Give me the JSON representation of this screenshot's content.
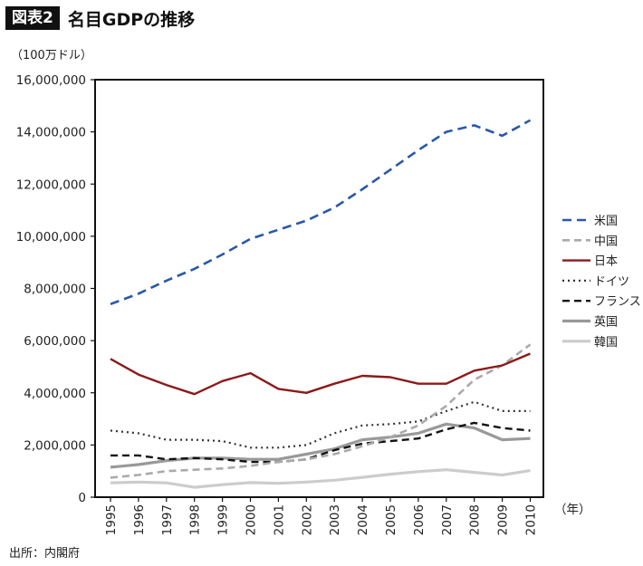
{
  "header": {
    "badge": "図表2",
    "title": "名目GDPの推移"
  },
  "unit_label": "（100万ドル）",
  "source": "出所：内閣府",
  "chart_data": {
    "type": "line",
    "title": "名目GDPの推移",
    "ylabel": "（100万ドル）",
    "xlabel": "（年）",
    "ylim": [
      0,
      16000000
    ],
    "yticks": [
      0,
      2000000,
      4000000,
      6000000,
      8000000,
      10000000,
      12000000,
      14000000,
      16000000
    ],
    "ytick_labels": [
      "0",
      "2,000,000",
      "4,000,000",
      "6,000,000",
      "8,000,000",
      "10,000,000",
      "12,000,000",
      "14,000,000",
      "16,000,000"
    ],
    "x": [
      "1995",
      "1996",
      "1997",
      "1998",
      "1999",
      "2000",
      "2001",
      "2002",
      "2003",
      "2004",
      "2005",
      "2006",
      "2007",
      "2008",
      "2009",
      "2010"
    ],
    "grid": false,
    "legend_position": "right",
    "series": [
      {
        "name": "米国",
        "color": "#2a58a8",
        "dash": "10,6",
        "width": 2.6,
        "values": [
          7400000,
          7800000,
          8300000,
          8750000,
          9300000,
          9900000,
          10250000,
          10600000,
          11100000,
          11800000,
          12550000,
          13300000,
          14000000,
          14250000,
          13850000,
          14450000
        ]
      },
      {
        "name": "中国",
        "color": "#aaaaaa",
        "dash": "8,5",
        "width": 2.6,
        "values": [
          750000,
          850000,
          1000000,
          1050000,
          1100000,
          1200000,
          1350000,
          1450000,
          1650000,
          1950000,
          2300000,
          2750000,
          3500000,
          4500000,
          5050000,
          5850000
        ]
      },
      {
        "name": "日本",
        "color": "#8b1a1a",
        "dash": "",
        "width": 2.4,
        "values": [
          5300000,
          4700000,
          4300000,
          3950000,
          4450000,
          4750000,
          4150000,
          4000000,
          4350000,
          4650000,
          4600000,
          4350000,
          4350000,
          4850000,
          5050000,
          5500000
        ]
      },
      {
        "name": "ドイツ",
        "color": "#333333",
        "dash": "2,4",
        "width": 2.2,
        "values": [
          2550000,
          2450000,
          2200000,
          2200000,
          2150000,
          1900000,
          1900000,
          2000000,
          2450000,
          2750000,
          2800000,
          2900000,
          3300000,
          3650000,
          3300000,
          3300000
        ]
      },
      {
        "name": "フランス",
        "color": "#111111",
        "dash": "8,5",
        "width": 2.4,
        "values": [
          1600000,
          1600000,
          1450000,
          1500000,
          1450000,
          1350000,
          1350000,
          1450000,
          1800000,
          2050000,
          2150000,
          2250000,
          2600000,
          2850000,
          2650000,
          2550000
        ]
      },
      {
        "name": "英国",
        "color": "#999999",
        "dash": "",
        "width": 3.2,
        "values": [
          1150000,
          1250000,
          1400000,
          1500000,
          1500000,
          1450000,
          1450000,
          1650000,
          1850000,
          2200000,
          2300000,
          2450000,
          2800000,
          2650000,
          2200000,
          2250000
        ]
      },
      {
        "name": "韓国",
        "color": "#cccccc",
        "dash": "",
        "width": 3.2,
        "values": [
          550000,
          580000,
          550000,
          380000,
          480000,
          560000,
          530000,
          580000,
          650000,
          760000,
          880000,
          980000,
          1050000,
          950000,
          850000,
          1020000
        ]
      }
    ]
  }
}
